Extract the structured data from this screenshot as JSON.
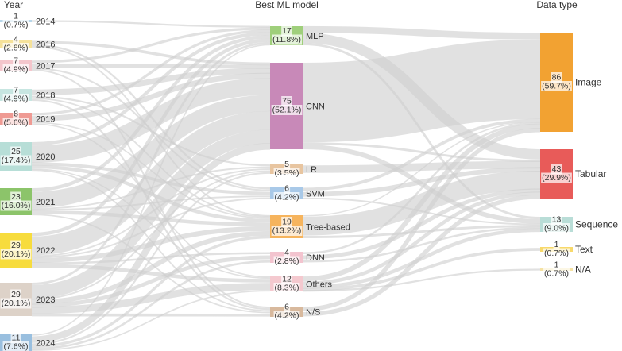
{
  "headers": {
    "year": "Year",
    "model": "Best ML model",
    "data_type": "Data type"
  },
  "columns": {
    "year": [
      {
        "id": "y2014",
        "label": "2014",
        "count": "1",
        "pct": "(0.7%)",
        "color": "#b8d7ea"
      },
      {
        "id": "y2016",
        "label": "2016",
        "count": "4",
        "pct": "(2.8%)",
        "color": "#f6e29a"
      },
      {
        "id": "y2017",
        "label": "2017",
        "count": "7",
        "pct": "(4.9%)",
        "color": "#f4c6cc"
      },
      {
        "id": "y2018",
        "label": "2018",
        "count": "7",
        "pct": "(4.9%)",
        "color": "#c7e6e1"
      },
      {
        "id": "y2019",
        "label": "2019",
        "count": "8",
        "pct": "(5.6%)",
        "color": "#ef9a93"
      },
      {
        "id": "y2020",
        "label": "2020",
        "count": "25",
        "pct": "(17.4%)",
        "color": "#b7ded7"
      },
      {
        "id": "y2021",
        "label": "2021",
        "count": "23",
        "pct": "(16.0%)",
        "color": "#8cc46a"
      },
      {
        "id": "y2022",
        "label": "2022",
        "count": "29",
        "pct": "(20.1%)",
        "color": "#f7dc3d"
      },
      {
        "id": "y2023",
        "label": "2023",
        "count": "29",
        "pct": "(20.1%)",
        "color": "#ddd2c8"
      },
      {
        "id": "y2024",
        "label": "2024",
        "count": "11",
        "pct": "(7.6%)",
        "color": "#99bfdf"
      }
    ],
    "model": [
      {
        "id": "mlp",
        "label": "MLP",
        "count": "17",
        "pct": "(11.8%)",
        "color": "#9fcf7b"
      },
      {
        "id": "cnn",
        "label": "CNN",
        "count": "75",
        "pct": "(52.1%)",
        "color": "#c889b8"
      },
      {
        "id": "lr",
        "label": "LR",
        "count": "5",
        "pct": "(3.5%)",
        "color": "#e8c5a0"
      },
      {
        "id": "svm",
        "label": "SVM",
        "count": "6",
        "pct": "(4.2%)",
        "color": "#a9c9e8"
      },
      {
        "id": "tree",
        "label": "Tree-based",
        "count": "19",
        "pct": "(13.2%)",
        "color": "#f6b45d"
      },
      {
        "id": "dnn",
        "label": "DNN",
        "count": "4",
        "pct": "(2.8%)",
        "color": "#f3c4cf"
      },
      {
        "id": "others",
        "label": "Others",
        "count": "12",
        "pct": "(8.3%)",
        "color": "#f4c9cf"
      },
      {
        "id": "ns",
        "label": "N/S",
        "count": "6",
        "pct": "(4.2%)",
        "color": "#d8b99d"
      }
    ],
    "data_type": [
      {
        "id": "image",
        "label": "Image",
        "count": "86",
        "pct": "(59.7%)",
        "color": "#f2a232"
      },
      {
        "id": "tabular",
        "label": "Tabular",
        "count": "43",
        "pct": "(29.9%)",
        "color": "#e85b59"
      },
      {
        "id": "sequence",
        "label": "Sequence",
        "count": "13",
        "pct": "(9.0%)",
        "color": "#b9ddd7"
      },
      {
        "id": "text",
        "label": "Text",
        "count": "1",
        "pct": "(0.7%)",
        "color": "#f8d96b"
      },
      {
        "id": "na",
        "label": "N/A",
        "count": "1",
        "pct": "(0.7%)",
        "color": "#f5e2a3"
      }
    ]
  },
  "links": [
    {
      "source": "y2014",
      "target": "mlp",
      "value": 1
    },
    {
      "source": "y2016",
      "target": "cnn",
      "value": 2
    },
    {
      "source": "y2016",
      "target": "tree",
      "value": 1
    },
    {
      "source": "y2016",
      "target": "svm",
      "value": 1
    },
    {
      "source": "y2017",
      "target": "mlp",
      "value": 2
    },
    {
      "source": "y2017",
      "target": "cnn",
      "value": 3
    },
    {
      "source": "y2017",
      "target": "svm",
      "value": 1
    },
    {
      "source": "y2017",
      "target": "ns",
      "value": 1
    },
    {
      "source": "y2018",
      "target": "cnn",
      "value": 4
    },
    {
      "source": "y2018",
      "target": "tree",
      "value": 1
    },
    {
      "source": "y2018",
      "target": "lr",
      "value": 1
    },
    {
      "source": "y2018",
      "target": "ns",
      "value": 1
    },
    {
      "source": "y2019",
      "target": "cnn",
      "value": 4
    },
    {
      "source": "y2019",
      "target": "mlp",
      "value": 2
    },
    {
      "source": "y2019",
      "target": "tree",
      "value": 1
    },
    {
      "source": "y2019",
      "target": "others",
      "value": 1
    },
    {
      "source": "y2020",
      "target": "cnn",
      "value": 15
    },
    {
      "source": "y2020",
      "target": "mlp",
      "value": 3
    },
    {
      "source": "y2020",
      "target": "tree",
      "value": 3
    },
    {
      "source": "y2020",
      "target": "svm",
      "value": 2
    },
    {
      "source": "y2020",
      "target": "others",
      "value": 1
    },
    {
      "source": "y2020",
      "target": "ns",
      "value": 1
    },
    {
      "source": "y2021",
      "target": "cnn",
      "value": 14
    },
    {
      "source": "y2021",
      "target": "mlp",
      "value": 3
    },
    {
      "source": "y2021",
      "target": "tree",
      "value": 3
    },
    {
      "source": "y2021",
      "target": "lr",
      "value": 1
    },
    {
      "source": "y2021",
      "target": "svm",
      "value": 1
    },
    {
      "source": "y2021",
      "target": "ns",
      "value": 1
    },
    {
      "source": "y2022",
      "target": "cnn",
      "value": 16
    },
    {
      "source": "y2022",
      "target": "mlp",
      "value": 3
    },
    {
      "source": "y2022",
      "target": "tree",
      "value": 4
    },
    {
      "source": "y2022",
      "target": "lr",
      "value": 1
    },
    {
      "source": "y2022",
      "target": "svm",
      "value": 1
    },
    {
      "source": "y2022",
      "target": "dnn",
      "value": 1
    },
    {
      "source": "y2022",
      "target": "others",
      "value": 3
    },
    {
      "source": "y2023",
      "target": "cnn",
      "value": 12
    },
    {
      "source": "y2023",
      "target": "mlp",
      "value": 2
    },
    {
      "source": "y2023",
      "target": "tree",
      "value": 4
    },
    {
      "source": "y2023",
      "target": "lr",
      "value": 1
    },
    {
      "source": "y2023",
      "target": "dnn",
      "value": 2
    },
    {
      "source": "y2023",
      "target": "others",
      "value": 6
    },
    {
      "source": "y2023",
      "target": "ns",
      "value": 2
    },
    {
      "source": "y2024",
      "target": "cnn",
      "value": 5
    },
    {
      "source": "y2024",
      "target": "mlp",
      "value": 1
    },
    {
      "source": "y2024",
      "target": "tree",
      "value": 2
    },
    {
      "source": "y2024",
      "target": "lr",
      "value": 1
    },
    {
      "source": "y2024",
      "target": "dnn",
      "value": 1
    },
    {
      "source": "y2024",
      "target": "others",
      "value": 1
    },
    {
      "source": "mlp",
      "target": "image",
      "value": 6
    },
    {
      "source": "mlp",
      "target": "tabular",
      "value": 9
    },
    {
      "source": "mlp",
      "target": "sequence",
      "value": 2
    },
    {
      "source": "cnn",
      "target": "image",
      "value": 69
    },
    {
      "source": "cnn",
      "target": "tabular",
      "value": 2
    },
    {
      "source": "cnn",
      "target": "sequence",
      "value": 4
    },
    {
      "source": "lr",
      "target": "tabular",
      "value": 5
    },
    {
      "source": "svm",
      "target": "image",
      "value": 2
    },
    {
      "source": "svm",
      "target": "tabular",
      "value": 3
    },
    {
      "source": "svm",
      "target": "sequence",
      "value": 1
    },
    {
      "source": "tree",
      "target": "image",
      "value": 1
    },
    {
      "source": "tree",
      "target": "tabular",
      "value": 16
    },
    {
      "source": "tree",
      "target": "sequence",
      "value": 2
    },
    {
      "source": "dnn",
      "target": "image",
      "value": 1
    },
    {
      "source": "dnn",
      "target": "tabular",
      "value": 2
    },
    {
      "source": "dnn",
      "target": "sequence",
      "value": 1
    },
    {
      "source": "others",
      "target": "image",
      "value": 4
    },
    {
      "source": "others",
      "target": "tabular",
      "value": 3
    },
    {
      "source": "others",
      "target": "sequence",
      "value": 3
    },
    {
      "source": "others",
      "target": "text",
      "value": 1
    },
    {
      "source": "others",
      "target": "na",
      "value": 1
    },
    {
      "source": "ns",
      "target": "image",
      "value": 3
    },
    {
      "source": "ns",
      "target": "tabular",
      "value": 3
    }
  ]
}
